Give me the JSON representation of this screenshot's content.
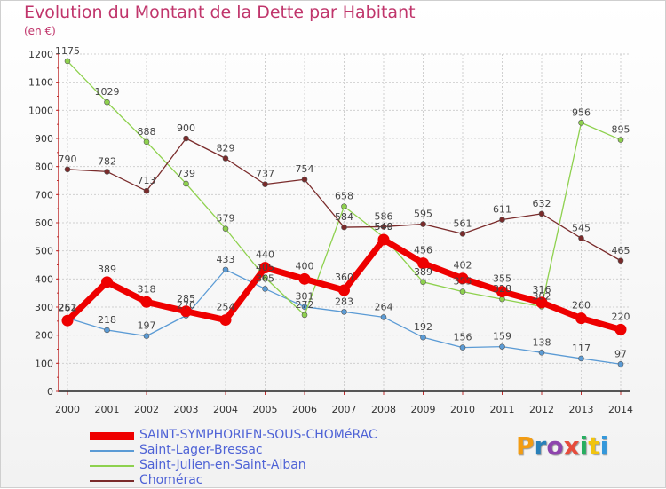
{
  "title": "Evolution du Montant de la Dette par Habitant",
  "subtitle": "(en €)",
  "logo": {
    "text": "Proxiti",
    "letters": [
      "P",
      "r",
      "o",
      "x",
      "i",
      "t",
      "i"
    ],
    "colors": [
      "#f39c12",
      "#2980b9",
      "#8e44ad",
      "#e74c3c",
      "#27ae60",
      "#f1c40f",
      "#3498db"
    ]
  },
  "chart_data": {
    "type": "line",
    "title": "Evolution du Montant de la Dette par Habitant",
    "subtitle": "(en €)",
    "xlabel": "",
    "ylabel": "",
    "x": [
      "2000",
      "2001",
      "2002",
      "2003",
      "2004",
      "2005",
      "2006",
      "2007",
      "2008",
      "2009",
      "2010",
      "2011",
      "2012",
      "2013",
      "2014"
    ],
    "ylim": [
      0,
      1200
    ],
    "yticks": [
      0,
      100,
      200,
      300,
      400,
      500,
      600,
      700,
      800,
      900,
      1000,
      1100,
      1200
    ],
    "grid": true,
    "legend_position": "bottom-left",
    "series": [
      {
        "name": "SAINT-SYMPHORIEN-SOUS-CHOMéRAC",
        "color": "#ee0000",
        "style": "thick",
        "values": [
          252,
          389,
          318,
          285,
          254,
          440,
          400,
          360,
          540,
          456,
          402,
          355,
          316,
          260,
          220
        ]
      },
      {
        "name": "Saint-Lager-Bressac",
        "color": "#5b9bd5",
        "style": "thin",
        "values": [
          261,
          218,
          197,
          270,
          433,
          365,
          301,
          283,
          264,
          192,
          156,
          159,
          138,
          117,
          97
        ]
      },
      {
        "name": "Saint-Julien-en-Saint-Alban",
        "color": "#8ed14e",
        "style": "thin",
        "values": [
          1175,
          1029,
          888,
          739,
          579,
          405,
          272,
          658,
          549,
          389,
          355,
          328,
          302,
          956,
          895
        ]
      },
      {
        "name": "Chomérac",
        "color": "#7a2b2b",
        "style": "thin",
        "values": [
          790,
          782,
          713,
          900,
          829,
          737,
          754,
          584,
          586,
          595,
          561,
          611,
          632,
          545,
          465
        ]
      }
    ]
  }
}
